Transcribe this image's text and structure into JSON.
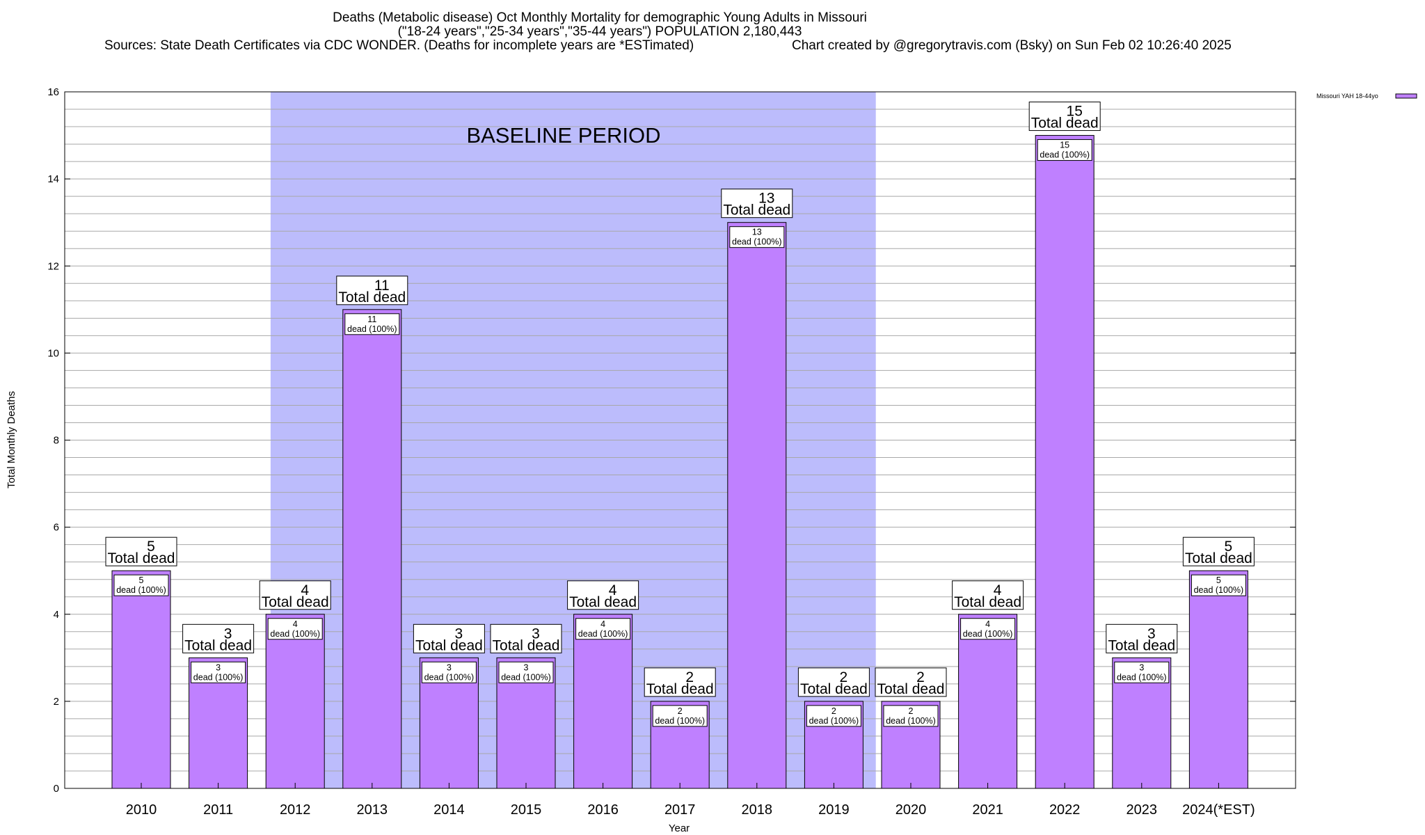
{
  "chart_data": {
    "type": "bar",
    "title_lines": [
      "Deaths (Metabolic disease) Oct Monthly Mortality for demographic Young Adults in Missouri",
      "(\"18-24 years\",\"25-34 years\",\"35-44 years\") POPULATION 2,180,443"
    ],
    "sources": "Sources: State Death Certificates via CDC WONDER. (Deaths for incomplete years are *ESTimated)",
    "credit": "Chart created by @gregorytravis.com (Bsky) on Sun Feb 02 10:26:40 2025",
    "xlabel": "Year",
    "ylabel": "Total Monthly Deaths",
    "ylim": [
      0,
      16
    ],
    "y_major_ticks": [
      0,
      2,
      4,
      6,
      8,
      10,
      12,
      14,
      16
    ],
    "categories": [
      "2010",
      "2011",
      "2012",
      "2013",
      "2014",
      "2015",
      "2016",
      "2017",
      "2018",
      "2019",
      "2020",
      "2021",
      "2022",
      "2023",
      "2024(*EST)"
    ],
    "series": [
      {
        "name": "Missouri YAH 18-44yo",
        "color": "#bf80ff",
        "values": [
          5,
          3,
          4,
          11,
          3,
          3,
          4,
          2,
          13,
          2,
          2,
          4,
          15,
          3,
          5
        ]
      }
    ],
    "total_label_suffix": "Total dead",
    "inner_label_suffix": "dead (100%)",
    "baseline_period": {
      "label": "BASELINE PERIOD",
      "start_category": "2012",
      "end_category": "2019",
      "color": "#bcbcfc"
    },
    "legend": {
      "label": "Missouri YAH 18-44yo",
      "placement": "top-right"
    }
  }
}
